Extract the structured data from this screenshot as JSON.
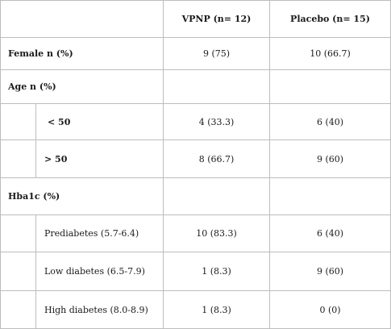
{
  "header": {
    "col1": "",
    "col_vpnp": "VPNP (n= 12)",
    "col_placebo": "Placebo (n= 15)"
  },
  "rows": {
    "female": {
      "label": "Female n (%)",
      "vpnp": "9 (75)",
      "placebo": "10 (66.7)"
    },
    "age": {
      "label": "Age n (%)"
    },
    "age_lt50": {
      "label": "< 50",
      "vpnp": "4 (33.3)",
      "placebo": "6 (40)"
    },
    "age_gt50": {
      "label": "> 50",
      "vpnp": "8 (66.7)",
      "placebo": "9 (60)"
    },
    "hba1c": {
      "label": "Hba1c (%)"
    },
    "prediabetes": {
      "label": "Prediabetes (5.7-6.4)",
      "vpnp": "10 (83.3)",
      "placebo": "6 (40)"
    },
    "low_diabetes": {
      "label": "Low diabetes (6.5-7.9)",
      "vpnp": "1 (8.3)",
      "placebo": "9 (60)"
    },
    "high_diabetes": {
      "label": "High diabetes (8.0-8.9)",
      "vpnp": "1 (8.3)",
      "placebo": "0 (0)"
    }
  }
}
